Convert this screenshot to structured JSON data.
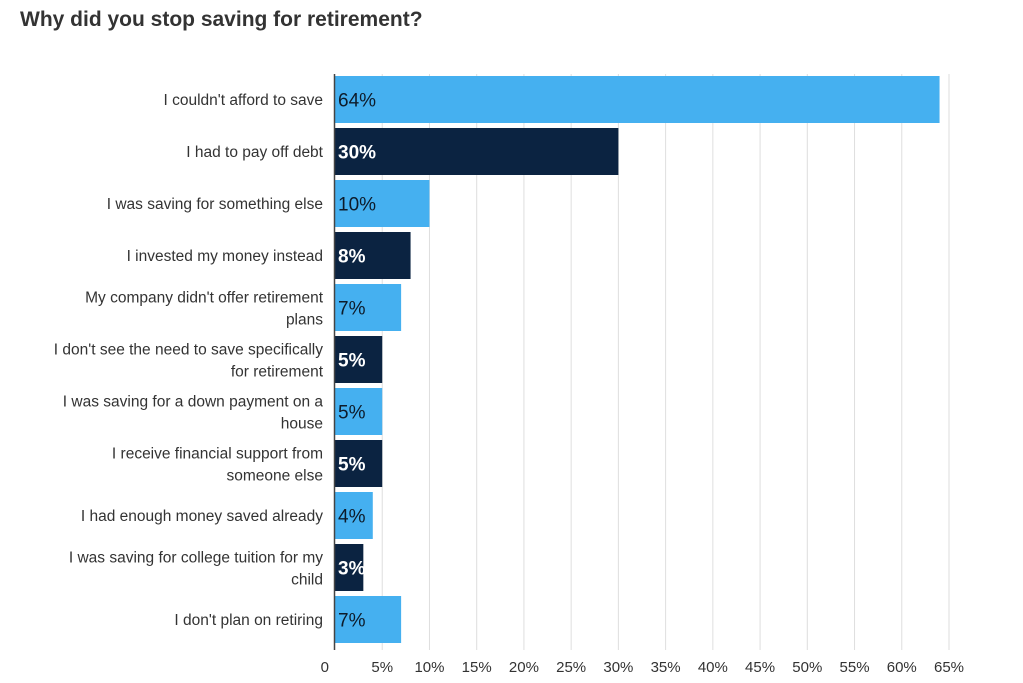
{
  "title": "Why did you stop saving for retirement?",
  "chart_data": {
    "type": "bar",
    "orientation": "horizontal",
    "title": "Why did you stop saving for retirement?",
    "categories": [
      [
        "I couldn't afford to save"
      ],
      [
        "I had to pay off debt"
      ],
      [
        "I was saving for something else"
      ],
      [
        "I invested my money instead"
      ],
      [
        "My company didn't offer retirement",
        "plans"
      ],
      [
        "I don't see the need to save specifically",
        "for retirement"
      ],
      [
        "I was saving for a down payment on a",
        "house"
      ],
      [
        "I receive financial support from",
        "someone else"
      ],
      [
        "I had enough money saved already"
      ],
      [
        "I was saving for college tuition for my",
        "child"
      ],
      [
        "I don't plan on retiring"
      ]
    ],
    "values": [
      64,
      30,
      10,
      8,
      7,
      5,
      5,
      5,
      4,
      3,
      7
    ],
    "value_labels": [
      "64%",
      "30%",
      "10%",
      "8%",
      "7%",
      "5%",
      "5%",
      "5%",
      "4%",
      "3%",
      "7%"
    ],
    "bar_colors": [
      "#45b0f0",
      "#0b2341",
      "#45b0f0",
      "#0b2341",
      "#45b0f0",
      "#0b2341",
      "#45b0f0",
      "#0b2341",
      "#45b0f0",
      "#0b2341",
      "#45b0f0"
    ],
    "xlim": [
      0,
      65
    ],
    "xticks": [
      0,
      5,
      10,
      15,
      20,
      25,
      30,
      35,
      40,
      45,
      50,
      55,
      60,
      65
    ],
    "xtick_labels": [
      "0",
      "5%",
      "10%",
      "15%",
      "20%",
      "25%",
      "30%",
      "35%",
      "40%",
      "45%",
      "50%",
      "55%",
      "60%",
      "65%"
    ],
    "grid": true,
    "legend": "none"
  }
}
